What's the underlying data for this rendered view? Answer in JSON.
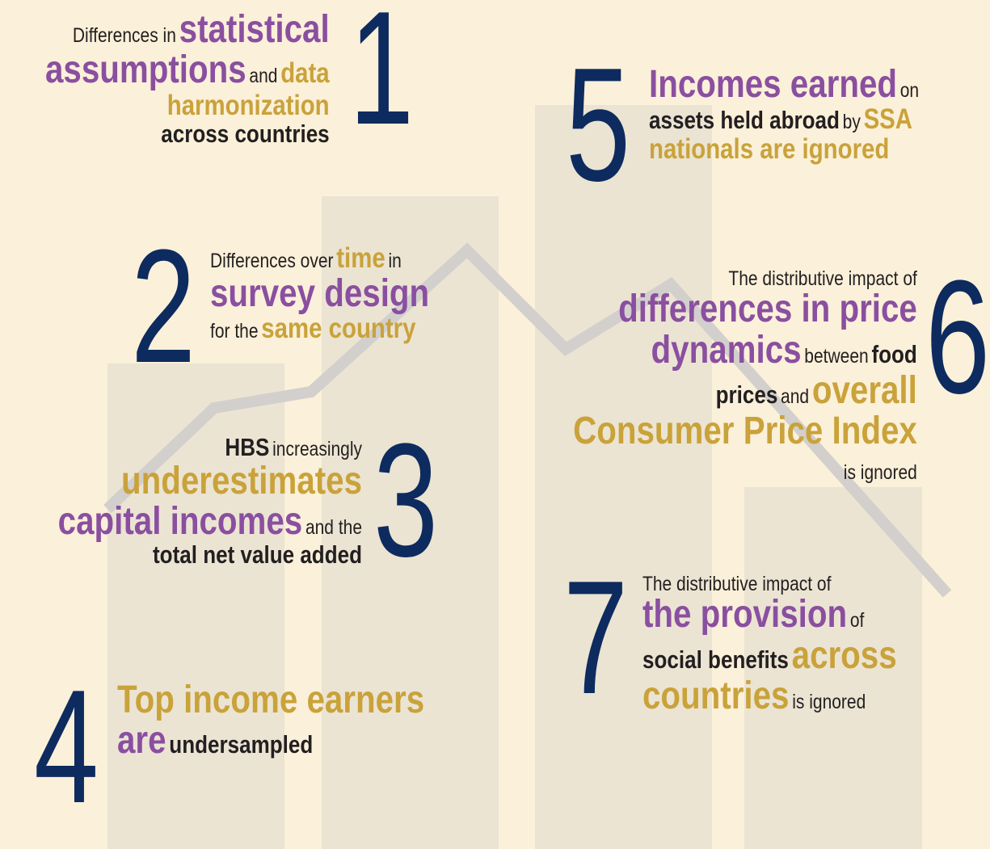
{
  "items": [
    {
      "number": 1,
      "parts": [
        "Differences in",
        "statistical",
        "assumptions",
        "and",
        "data",
        "harmonization",
        "across countries"
      ]
    },
    {
      "number": 2,
      "parts": [
        "Differences over",
        "time",
        "in",
        "survey design",
        "for the",
        "same country"
      ]
    },
    {
      "number": 3,
      "parts": [
        "HBS",
        "increasingly",
        "underestimates",
        "capital incomes",
        "and the",
        "total net value added"
      ]
    },
    {
      "number": 4,
      "parts": [
        "Top income earners",
        "are",
        "undersampled"
      ]
    },
    {
      "number": 5,
      "parts": [
        "Incomes earned",
        "on",
        "assets held abroad",
        "by",
        "SSA",
        "nationals are ignored"
      ]
    },
    {
      "number": 6,
      "parts": [
        "The distributive impact of",
        "differences in price",
        "dynamics",
        "between",
        "food",
        "prices",
        "and",
        "overall",
        "Consumer Price Index",
        "is ignored"
      ]
    },
    {
      "number": 7,
      "parts": [
        "The distributive impact of",
        "the provision",
        "of",
        "social benefits",
        "across",
        "countries",
        "is ignored"
      ]
    }
  ]
}
